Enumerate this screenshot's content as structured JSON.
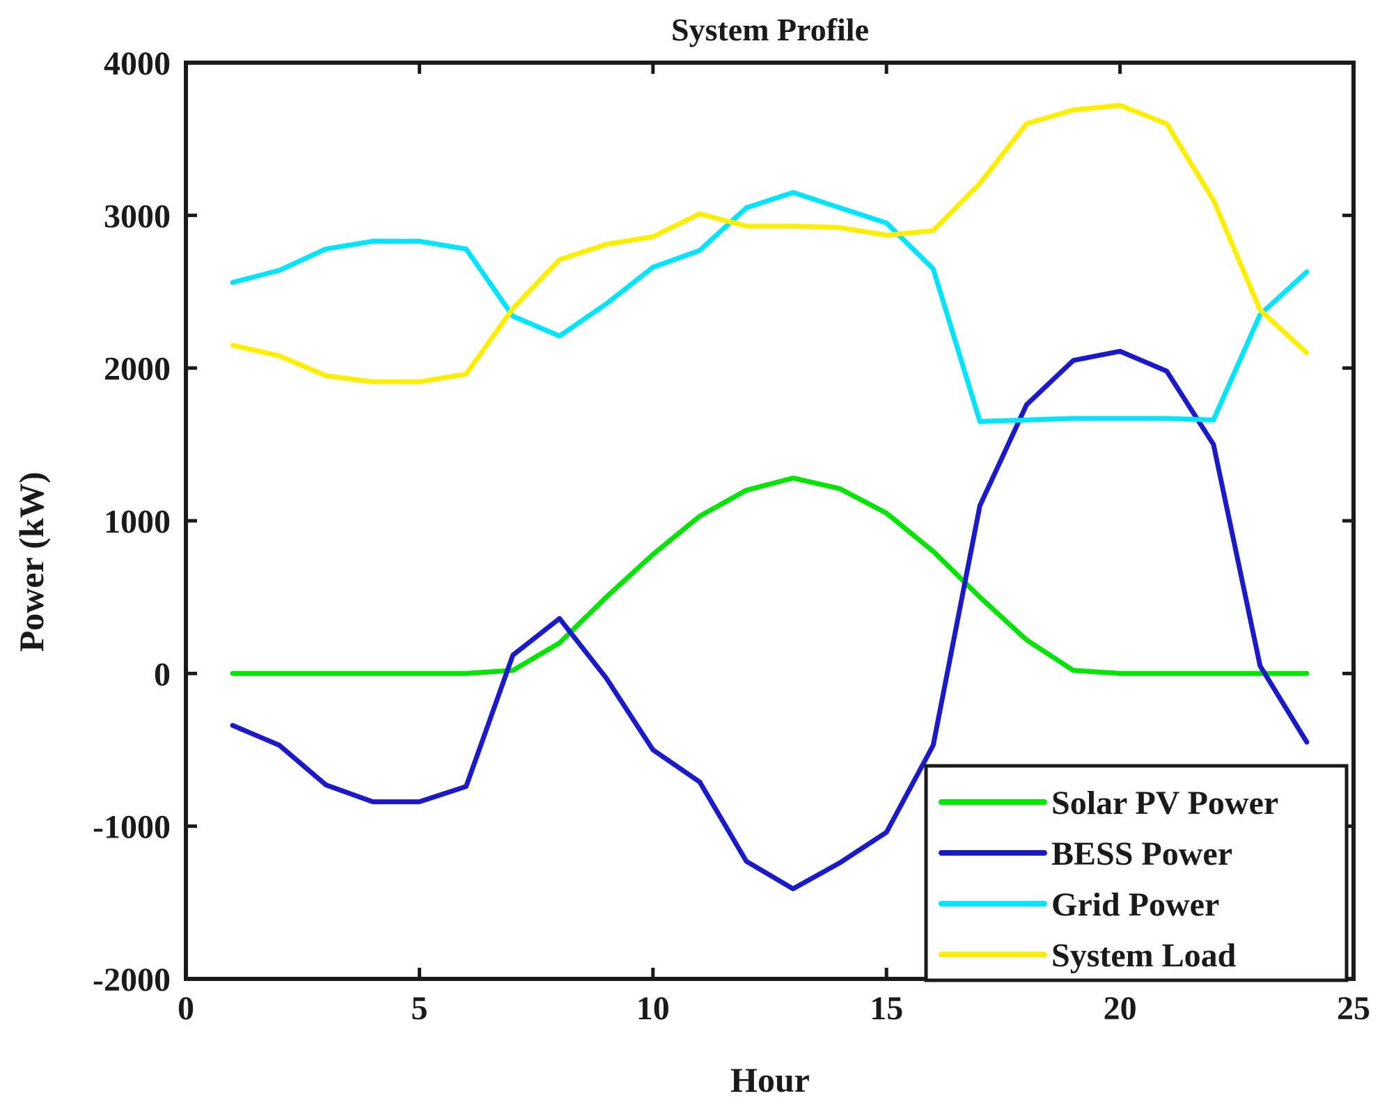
{
  "chart_data": {
    "type": "line",
    "title": "System Profile",
    "xlabel": "Hour",
    "ylabel": "Power (kW)",
    "xlim": [
      0,
      25
    ],
    "ylim": [
      -2000,
      4000
    ],
    "xticks": [
      0,
      5,
      10,
      15,
      20,
      25
    ],
    "yticks": [
      -2000,
      -1000,
      0,
      1000,
      2000,
      3000,
      4000
    ],
    "grid": false,
    "legend_position": "bottom-right",
    "x": [
      1,
      2,
      3,
      4,
      5,
      6,
      7,
      8,
      9,
      10,
      11,
      12,
      13,
      14,
      15,
      16,
      17,
      18,
      19,
      20,
      21,
      22,
      23,
      24
    ],
    "series": [
      {
        "name": "Solar PV Power",
        "color": "#00e600",
        "values": [
          0,
          0,
          0,
          0,
          0,
          0,
          20,
          200,
          500,
          780,
          1030,
          1200,
          1280,
          1210,
          1050,
          800,
          500,
          220,
          20,
          0,
          0,
          0,
          0,
          0
        ]
      },
      {
        "name": "BESS Power",
        "color": "#1a1acc",
        "values": [
          -340,
          -470,
          -730,
          -840,
          -840,
          -740,
          120,
          360,
          -30,
          -500,
          -710,
          -1230,
          -1410,
          -1240,
          -1040,
          -470,
          1100,
          1760,
          2050,
          2110,
          1980,
          1500,
          50,
          -450
        ]
      },
      {
        "name": "Grid Power",
        "color": "#00e5ff",
        "values": [
          2560,
          2640,
          2780,
          2830,
          2830,
          2780,
          2340,
          2210,
          2420,
          2660,
          2770,
          3050,
          3150,
          3050,
          2950,
          2650,
          1650,
          1660,
          1670,
          1670,
          1670,
          1660,
          2350,
          2630
        ]
      },
      {
        "name": "System Load",
        "color": "#ffee00",
        "values": [
          2150,
          2080,
          1950,
          1910,
          1910,
          1960,
          2390,
          2710,
          2810,
          2860,
          3010,
          2930,
          2930,
          2920,
          2870,
          2900,
          3210,
          3600,
          3690,
          3720,
          3600,
          3100,
          2380,
          2100
        ]
      }
    ]
  }
}
